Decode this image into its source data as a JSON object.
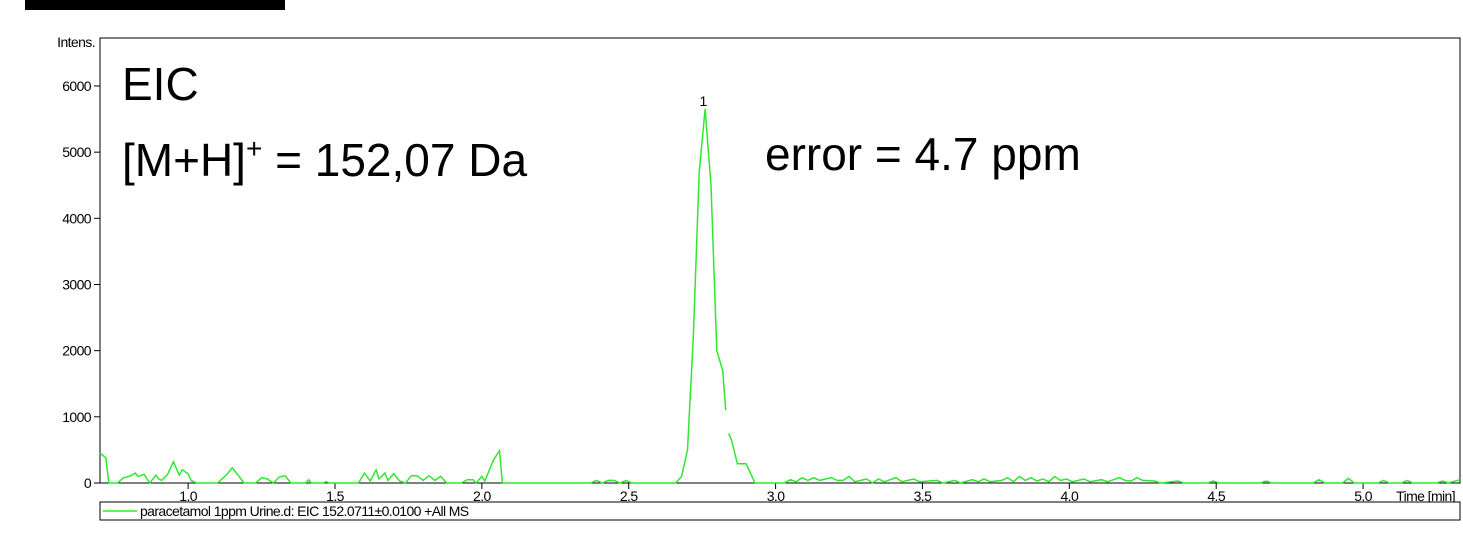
{
  "chart_data": {
    "type": "line",
    "y_axis_label": "Intens.",
    "x_axis_label": "Time [min]",
    "annotations": {
      "trace_type": "EIC",
      "ion": {
        "base": "[M+H]",
        "superscript": "+",
        "rest": " = 152,07 Da"
      },
      "error": "error = 4.7 ppm"
    },
    "peak_labels": [
      {
        "x": 2.76,
        "label": "1"
      }
    ],
    "x": [
      0.7,
      0.72,
      0.73,
      0.76,
      0.78,
      0.8,
      0.82,
      0.83,
      0.85,
      0.86,
      0.87,
      0.89,
      0.9,
      0.91,
      0.93,
      0.95,
      0.97,
      0.98,
      1.0,
      1.01,
      1.03,
      1.1,
      1.13,
      1.15,
      1.17,
      1.19,
      1.23,
      1.25,
      1.27,
      1.29,
      1.31,
      1.33,
      1.35,
      1.4,
      1.41,
      1.42,
      1.46,
      1.47,
      1.48,
      1.58,
      1.6,
      1.62,
      1.64,
      1.65,
      1.67,
      1.68,
      1.7,
      1.72,
      1.74,
      1.76,
      1.78,
      1.8,
      1.82,
      1.84,
      1.86,
      1.88,
      1.93,
      1.95,
      1.97,
      1.98,
      2.0,
      2.01,
      2.04,
      2.06,
      2.07,
      2.37,
      2.39,
      2.41,
      2.43,
      2.45,
      2.47,
      2.49,
      2.51,
      2.66,
      2.68,
      2.7,
      2.72,
      2.74,
      2.76,
      2.78,
      2.8,
      2.82,
      2.83,
      null,
      2.84,
      2.85,
      2.87,
      2.9,
      2.93,
      3.03,
      3.05,
      3.07,
      3.09,
      3.11,
      3.13,
      3.15,
      3.17,
      3.19,
      3.21,
      3.23,
      3.25,
      3.27,
      3.31,
      3.33,
      3.35,
      3.37,
      3.41,
      3.43,
      3.47,
      3.49,
      3.55,
      3.57,
      3.61,
      3.63,
      3.67,
      3.69,
      3.71,
      3.73,
      3.77,
      3.79,
      3.81,
      3.83,
      3.85,
      3.87,
      3.89,
      3.91,
      3.93,
      3.95,
      3.97,
      3.99,
      4.01,
      4.05,
      4.07,
      4.11,
      4.13,
      4.17,
      4.19,
      4.21,
      4.23,
      4.25,
      4.29,
      4.31,
      4.37,
      4.39,
      4.47,
      4.49,
      4.51,
      4.65,
      4.67,
      4.69,
      4.83,
      4.85,
      4.87,
      4.93,
      4.95,
      4.97,
      5.05,
      5.07,
      5.09,
      5.13,
      5.15,
      5.17,
      5.25,
      5.27,
      5.29,
      5.33
    ],
    "series": [
      {
        "name": "paracetamol 1ppm Urine.d: EIC 152.0711±0.0100 +All MS",
        "color": "#2ee82e",
        "values": [
          450,
          380,
          0,
          0,
          80,
          100,
          150,
          100,
          130,
          60,
          0,
          120,
          60,
          40,
          130,
          320,
          120,
          200,
          140,
          40,
          0,
          0,
          120,
          230,
          120,
          0,
          0,
          80,
          60,
          0,
          90,
          110,
          0,
          0,
          50,
          0,
          0,
          20,
          0,
          0,
          150,
          30,
          200,
          60,
          150,
          40,
          140,
          30,
          0,
          110,
          110,
          40,
          110,
          40,
          100,
          0,
          0,
          50,
          50,
          0,
          100,
          30,
          350,
          490,
          0,
          0,
          40,
          0,
          40,
          40,
          0,
          40,
          0,
          0,
          100,
          500,
          2200,
          4700,
          5650,
          4500,
          2000,
          1700,
          1100,
          null,
          750,
          650,
          290,
          290,
          0,
          0,
          50,
          20,
          80,
          40,
          80,
          40,
          60,
          80,
          40,
          40,
          100,
          20,
          60,
          0,
          60,
          20,
          80,
          20,
          60,
          20,
          40,
          0,
          40,
          0,
          50,
          20,
          60,
          20,
          40,
          80,
          20,
          100,
          40,
          80,
          30,
          60,
          20,
          100,
          40,
          60,
          20,
          60,
          20,
          50,
          20,
          80,
          40,
          30,
          80,
          40,
          30,
          0,
          30,
          0,
          0,
          30,
          0,
          0,
          30,
          0,
          0,
          50,
          0,
          0,
          70,
          0,
          0,
          40,
          0,
          0,
          40,
          0,
          0,
          30,
          0,
          50
        ]
      }
    ],
    "xlim": [
      0.7,
      5.33
    ],
    "ylim": [
      0,
      6725
    ],
    "xticks": [
      {
        "value": 1,
        "label": "1.0"
      },
      1.5,
      {
        "value": 2,
        "label": "2.0"
      },
      2.5,
      {
        "value": 3,
        "label": "3.0"
      },
      3.5,
      {
        "value": 4,
        "label": "4.0"
      },
      4.5,
      {
        "value": 5,
        "label": "5.0"
      }
    ],
    "yticks": [
      0,
      1000,
      2000,
      3000,
      4000,
      5000,
      6000
    ],
    "grid": false
  }
}
